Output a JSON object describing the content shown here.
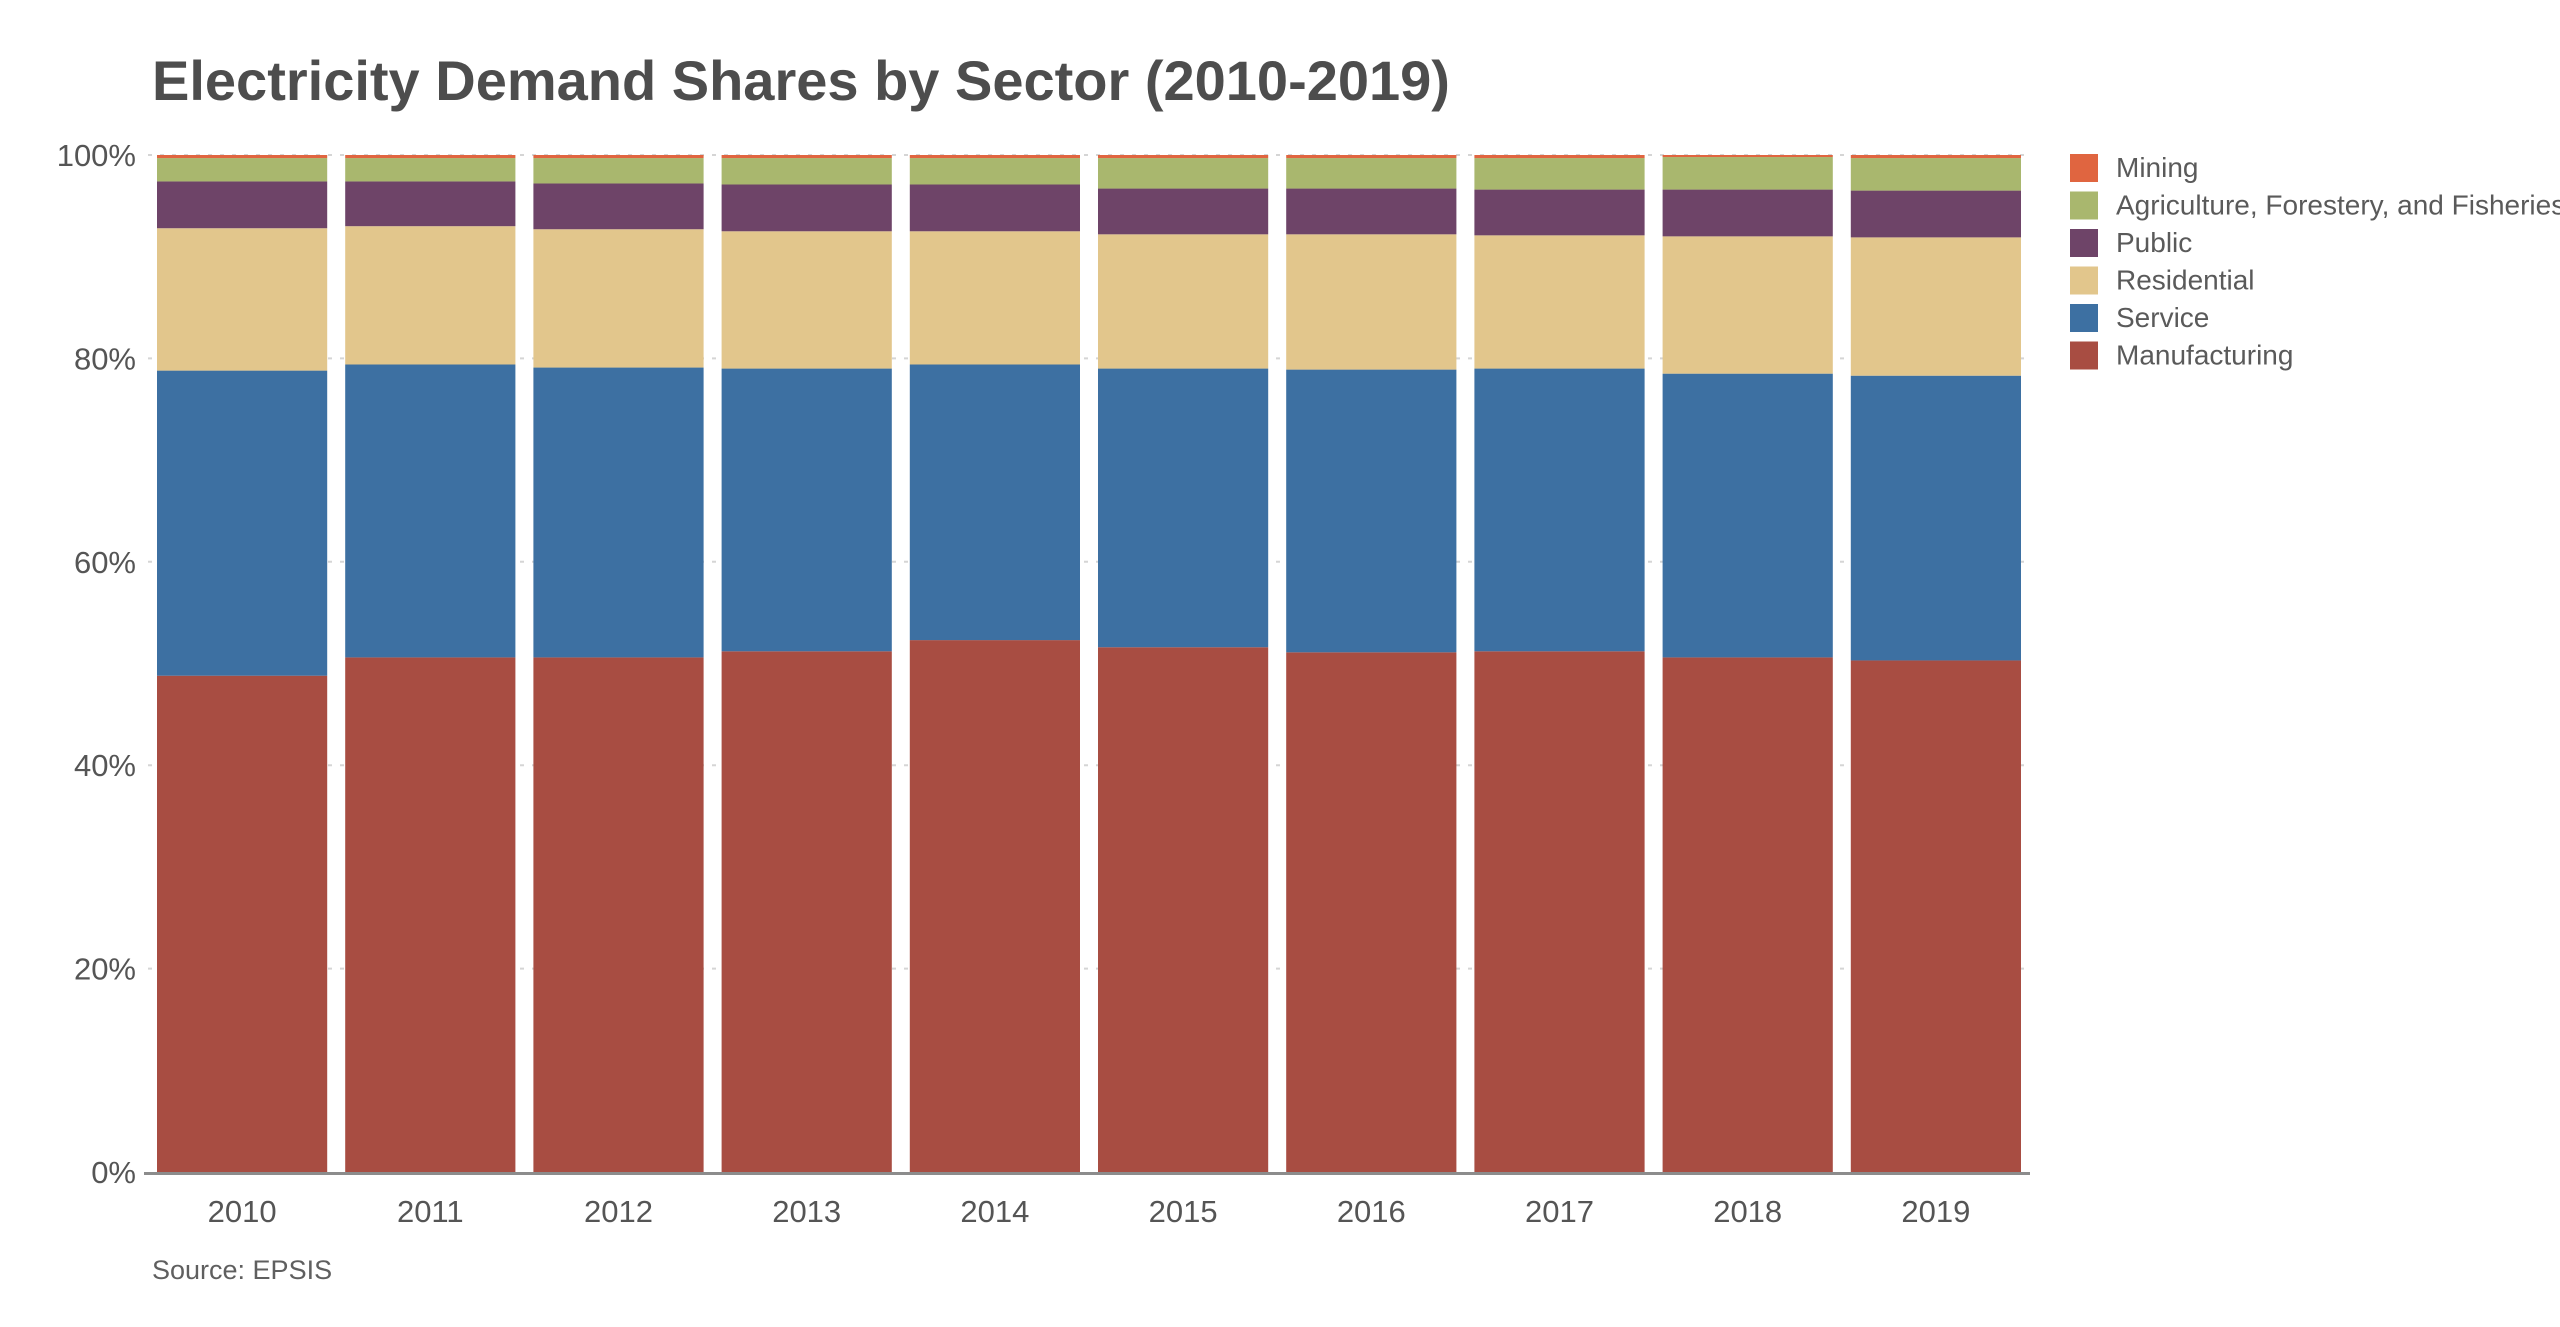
{
  "chart_data": {
    "type": "bar",
    "stacked": true,
    "title": "Electricity Demand Shares by Sector (2010-2019)",
    "xlabel": "",
    "ylabel": "",
    "source": "Source: EPSIS",
    "categories": [
      "2010",
      "2011",
      "2012",
      "2013",
      "2014",
      "2015",
      "2016",
      "2017",
      "2018",
      "2019"
    ],
    "yticks": [
      "0%",
      "20%",
      "40%",
      "60%",
      "80%",
      "100%"
    ],
    "ylim": [
      0,
      100
    ],
    "grid": true,
    "legend_position": "right",
    "series": [
      {
        "name": "Manufacturing",
        "color": "#a84d42",
        "values": [
          48.8,
          50.6,
          50.6,
          51.2,
          52.3,
          51.6,
          51.1,
          51.2,
          50.6,
          50.3
        ]
      },
      {
        "name": "Service",
        "color": "#3d70a2",
        "values": [
          30.0,
          28.8,
          28.5,
          27.8,
          27.1,
          27.4,
          27.8,
          27.8,
          27.9,
          28.0
        ]
      },
      {
        "name": "Residential",
        "color": "#e2c68c",
        "values": [
          14.0,
          13.6,
          13.6,
          13.5,
          13.1,
          13.2,
          13.3,
          13.1,
          13.5,
          13.6
        ]
      },
      {
        "name": "Public",
        "color": "#6e4468",
        "values": [
          4.6,
          4.4,
          4.5,
          4.6,
          4.6,
          4.5,
          4.5,
          4.5,
          4.6,
          4.6
        ]
      },
      {
        "name": "Agriculture, Forestery, and Fisheries",
        "color": "#a9b76e",
        "values": [
          2.3,
          2.3,
          2.5,
          2.6,
          2.6,
          3.0,
          3.0,
          3.1,
          3.2,
          3.2
        ]
      },
      {
        "name": "Mining",
        "color": "#e06540",
        "values": [
          0.3,
          0.3,
          0.3,
          0.3,
          0.3,
          0.3,
          0.3,
          0.3,
          0.2,
          0.3
        ]
      }
    ],
    "legend_order": [
      "Mining",
      "Agriculture, Forestery, and Fisheries",
      "Public",
      "Residential",
      "Service",
      "Manufacturing"
    ]
  }
}
